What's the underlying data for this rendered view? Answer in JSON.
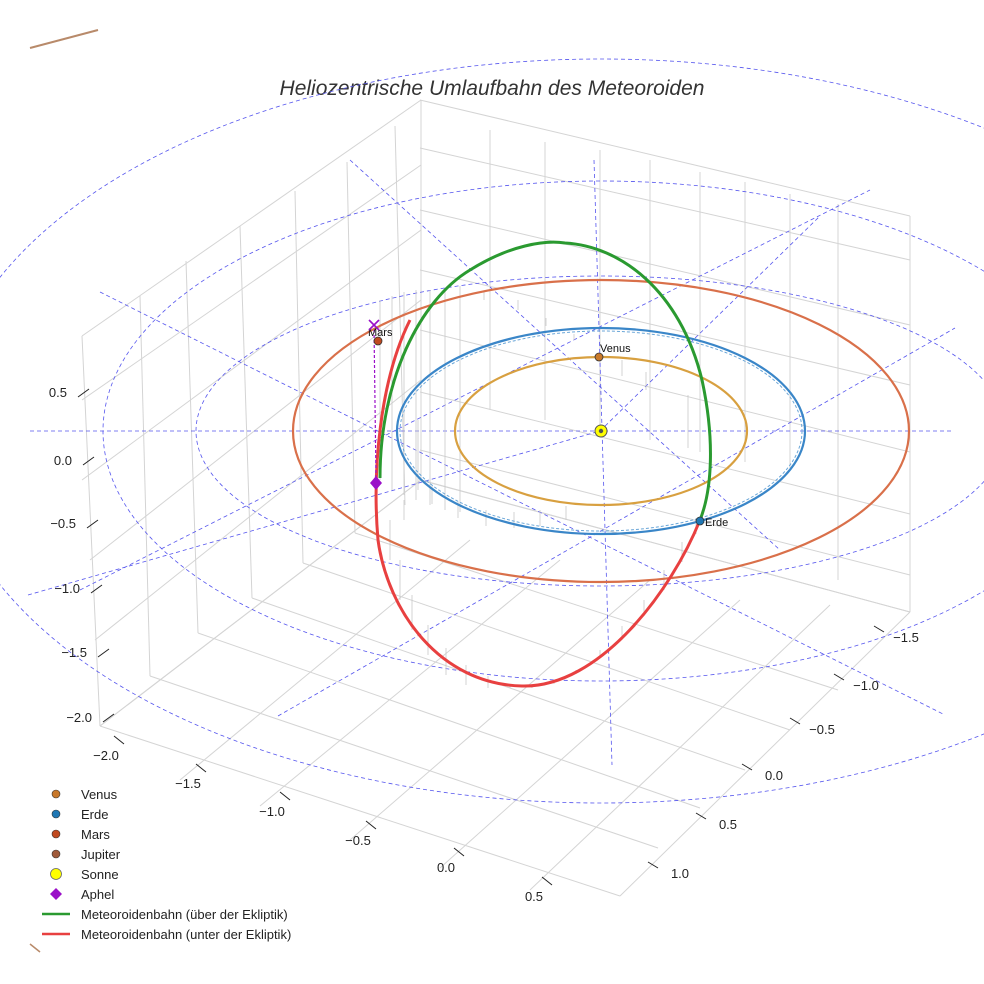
{
  "chart_data": {
    "type": "line",
    "title": "Heliozentrische Umlaufbahn des Meteoroiden",
    "projection": "3d",
    "grid": true,
    "legend_position": "bottom-left",
    "axes": {
      "x": {
        "ticks": [
          -2.0,
          -1.5,
          -1.0,
          -0.5,
          0.0,
          0.5
        ],
        "tick_labels": [
          "−2.0",
          "−1.5",
          "−1.0",
          "−0.5",
          "0.0",
          "0.5"
        ]
      },
      "y": {
        "ticks": [
          -1.5,
          -1.0,
          -0.5,
          0.0,
          0.5,
          1.0
        ],
        "tick_labels": [
          "−1.5",
          "−1.0",
          "−0.5",
          "0.0",
          "0.5",
          "1.0"
        ]
      },
      "z": {
        "ticks": [
          0.5,
          0.0,
          -0.5,
          -1.0,
          -1.5,
          -2.0
        ],
        "tick_labels": [
          "0.5",
          "0.0",
          "−0.5",
          "−1.0",
          "−1.5",
          "−2.0"
        ]
      }
    },
    "series": [
      {
        "name": "Venus",
        "kind": "orbit",
        "radius": 0.72,
        "color": "#d8a040"
      },
      {
        "name": "Erde",
        "kind": "orbit",
        "radius": 1.0,
        "color": "#3a86c8"
      },
      {
        "name": "Mars",
        "kind": "orbit",
        "radius": 1.52,
        "color": "#d9704a"
      },
      {
        "name": "Meteoroidenbahn (über der Ekliptik)",
        "kind": "trajectory",
        "color": "#2a9a30"
      },
      {
        "name": "Meteoroidenbahn (unter der Ekliptik)",
        "kind": "trajectory",
        "color": "#e84040"
      }
    ],
    "points": [
      {
        "name": "Venus",
        "label": "Venus",
        "color": "#c8782a"
      },
      {
        "name": "Erde",
        "label": "Erde",
        "color": "#1f77b4"
      },
      {
        "name": "Mars",
        "label": "Mars",
        "color": "#c04a20"
      },
      {
        "name": "Sonne",
        "color": "#ffff00"
      },
      {
        "name": "Aphel",
        "color": "#9a10c8"
      }
    ],
    "legend": [
      {
        "label": "Venus",
        "symbol": "dot",
        "color": "#c8782a"
      },
      {
        "label": "Erde",
        "symbol": "dot",
        "color": "#1f77b4"
      },
      {
        "label": "Mars",
        "symbol": "dot",
        "color": "#c04a20"
      },
      {
        "label": "Jupiter",
        "symbol": "dot",
        "color": "#a05a3a"
      },
      {
        "label": "Sonne",
        "symbol": "sun",
        "color": "#ffff00"
      },
      {
        "label": "Aphel",
        "symbol": "diamond",
        "color": "#9a10c8"
      },
      {
        "label": "Meteoroidenbahn (über der Ekliptik)",
        "symbol": "line",
        "color": "#2a9a30"
      },
      {
        "label": "Meteoroidenbahn (unter der Ekliptik)",
        "symbol": "line",
        "color": "#e84040"
      }
    ]
  }
}
